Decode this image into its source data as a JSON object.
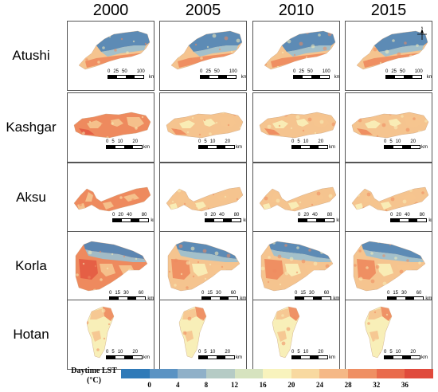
{
  "years": [
    "2000",
    "2005",
    "2010",
    "2015"
  ],
  "cities": [
    {
      "name": "Atushi",
      "shape": "atushi",
      "scale": [
        "0",
        "25",
        "50",
        "",
        "100"
      ]
    },
    {
      "name": "Kashgar",
      "shape": "kashgar",
      "scale": [
        "0",
        "5",
        "10",
        "",
        "20"
      ]
    },
    {
      "name": "Aksu",
      "shape": "aksu",
      "scale": [
        "0",
        "20",
        "40",
        "",
        "80"
      ]
    },
    {
      "name": "Korla",
      "shape": "korla",
      "scale": [
        "0",
        "15",
        "30",
        "",
        "60"
      ]
    },
    {
      "name": "Hotan",
      "shape": "hotan",
      "scale": [
        "0",
        "5",
        "10",
        "",
        "20"
      ]
    }
  ],
  "scale_unit": "km",
  "north_label": "N",
  "legend": {
    "title_line1": "Daytime LST",
    "title_line2": "(°C)",
    "colors": [
      "#2f7ab8",
      "#5b93c3",
      "#8fb0c8",
      "#b5cbc5",
      "#d6e3bf",
      "#f8f3bd",
      "#f8d9a0",
      "#f5b886",
      "#ef8f63",
      "#e96a4c",
      "#e04a3c"
    ],
    "ticks": [
      "0",
      "4",
      "8",
      "12",
      "16",
      "20",
      "24",
      "28",
      "32",
      "36"
    ]
  },
  "palette": {
    "cold": "#4f86b8",
    "cool": "#9bbfcf",
    "mild": "#f8efb8",
    "warm": "#f5c48f",
    "hot": "#ee8a5e",
    "very_hot": "#e45b43"
  }
}
